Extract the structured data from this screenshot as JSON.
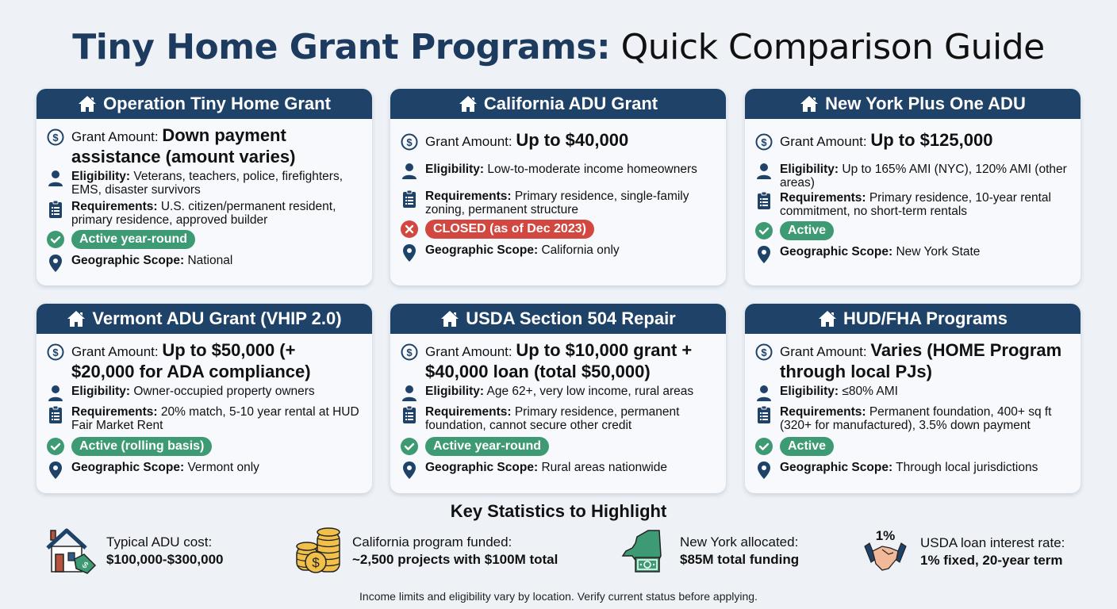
{
  "header": {
    "title_bold": "Tiny Home Grant Programs:",
    "title_light": "Quick Comparison Guide"
  },
  "colors": {
    "header_navy": "#1f4268",
    "active_green": "#3e9a72",
    "closed_red": "#d2473f",
    "background": "#eef2f7"
  },
  "labels": {
    "grant_amount": "Grant Amount:",
    "eligibility": "Eligibility:",
    "requirements": "Requirements:",
    "geographic_scope": "Geographic Scope:"
  },
  "programs": [
    {
      "name": "Operation Tiny Home Grant",
      "grant_amount": "Down payment assistance (amount varies)",
      "eligibility": "Veterans, teachers, police, firefighters, EMS, disaster survivors",
      "requirements": "U.S. citizen/permanent resident, primary residence, approved builder",
      "status": "Active year-round",
      "status_type": "active",
      "geographic_scope": "National"
    },
    {
      "name": "California ADU Grant",
      "grant_amount": "Up to $40,000",
      "eligibility": "Low-to-moderate income homeowners",
      "requirements": "Primary residence, single-family zoning, permanent structure",
      "status": "CLOSED (as of Dec 2023)",
      "status_type": "closed",
      "geographic_scope": "California only"
    },
    {
      "name": "New York Plus One ADU",
      "grant_amount": "Up to $125,000",
      "eligibility": "Up to 165% AMI (NYC), 120% AMI (other areas)",
      "requirements": "Primary residence, 10-year rental commitment, no short-term rentals",
      "status": "Active",
      "status_type": "active",
      "geographic_scope": "New York State"
    },
    {
      "name": "Vermont ADU Grant (VHIP 2.0)",
      "grant_amount": "Up to $50,000 (+ $20,000 for ADA compliance)",
      "eligibility": "Owner-occupied property owners",
      "requirements": "20% match, 5-10 year rental at HUD Fair Market Rent",
      "status": "Active (rolling basis)",
      "status_type": "active",
      "geographic_scope": "Vermont only"
    },
    {
      "name": "USDA Section 504 Repair",
      "grant_amount": "Up to $10,000 grant + $40,000 loan (total $50,000)",
      "eligibility": "Age 62+, very low income, rural areas",
      "requirements": "Primary residence, permanent foundation, cannot secure other credit",
      "status": "Active year-round",
      "status_type": "active",
      "geographic_scope": "Rural areas nationwide"
    },
    {
      "name": "HUD/FHA Programs",
      "grant_amount": "Varies (HOME Program through local PJs)",
      "eligibility": "≤80% AMI",
      "requirements": "Permanent foundation, 400+ sq ft (320+ for manufactured), 3.5% down payment",
      "status": "Active",
      "status_type": "active",
      "geographic_scope": "Through local jurisdictions"
    }
  ],
  "stats": {
    "title": "Key Statistics to Highlight",
    "items": [
      {
        "icon": "house-price-tag-icon",
        "label": "Typical ADU cost:",
        "value": "$100,000-$300,000"
      },
      {
        "icon": "coin-stack-icon",
        "label": "California program funded:",
        "value": "~2,500 projects with $100M total"
      },
      {
        "icon": "new-york-money-icon",
        "label": "New York allocated:",
        "value": "$85M total funding"
      },
      {
        "icon": "handshake-icon",
        "badge": "1%",
        "label": "USDA loan interest rate:",
        "value": "1% fixed, 20-year term"
      }
    ]
  },
  "footnote": "Income limits and eligibility vary by location. Verify current status before applying."
}
